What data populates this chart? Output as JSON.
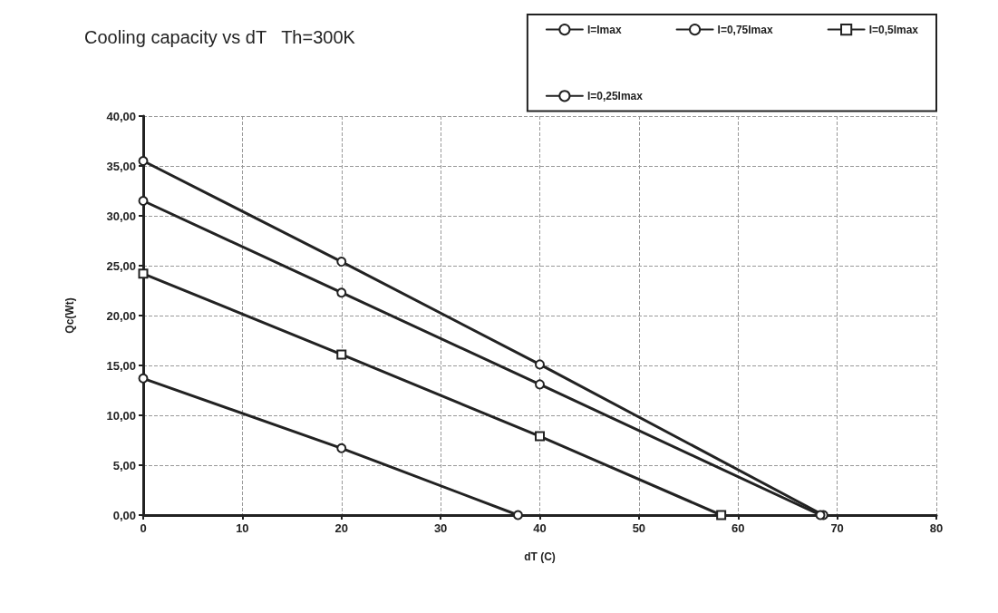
{
  "chart_data": {
    "type": "line",
    "title": "Cooling capacity vs dT   Th=300K",
    "xlabel": "dT (C)",
    "ylabel": "Qc(Wt)",
    "xlim": [
      0,
      80
    ],
    "xticks": [
      0,
      10,
      20,
      30,
      40,
      50,
      60,
      70,
      80
    ],
    "ylim": [
      0,
      40
    ],
    "yticks": [
      {
        "value": 0,
        "label": "0,00"
      },
      {
        "value": 5,
        "label": "5,00"
      },
      {
        "value": 10,
        "label": "10,00"
      },
      {
        "value": 15,
        "label": "15,00"
      },
      {
        "value": 20,
        "label": "20,00"
      },
      {
        "value": 25,
        "label": "25,00"
      },
      {
        "value": 30,
        "label": "30,00"
      },
      {
        "value": 35,
        "label": "35,00"
      },
      {
        "value": 40,
        "label": "40,00"
      }
    ],
    "grid": true,
    "legend": "top right",
    "line_style": "solid",
    "series": [
      {
        "name": "I=Imax",
        "color": "#222222",
        "marker": "circle",
        "x": [
          0,
          20,
          40,
          68.6
        ],
        "values": [
          35.5,
          25.4,
          15.1,
          0
        ]
      },
      {
        "name": "I=0,75Imax",
        "color": "#222222",
        "marker": "circle",
        "x": [
          0,
          20,
          40,
          68.3
        ],
        "values": [
          31.5,
          22.3,
          13.1,
          0
        ]
      },
      {
        "name": "I=0,5Imax",
        "color": "#222222",
        "marker": "square",
        "x": [
          0,
          20,
          40,
          58.3
        ],
        "values": [
          24.2,
          16.1,
          7.9,
          0
        ]
      },
      {
        "name": "I=0,25Imax",
        "color": "#222222",
        "marker": "circle",
        "x": [
          0,
          20,
          37.8
        ],
        "values": [
          13.7,
          6.7,
          0
        ]
      }
    ]
  }
}
